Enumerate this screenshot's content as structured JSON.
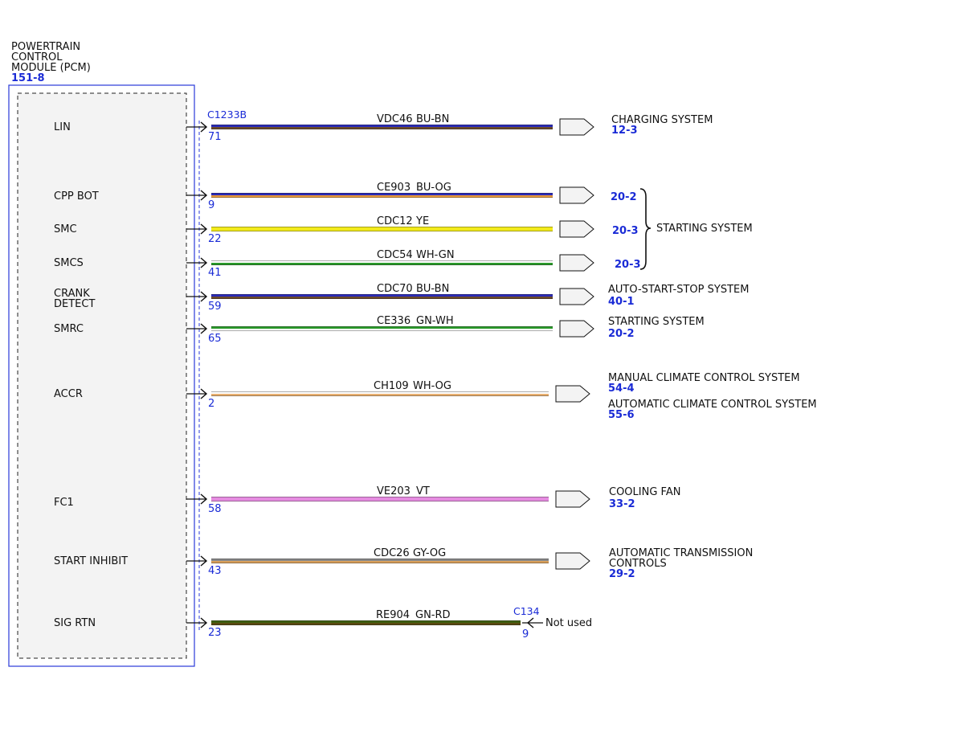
{
  "module": {
    "name_lines": [
      "POWERTRAIN",
      "CONTROL",
      "MODULE (PCM)"
    ],
    "ref": "151-8"
  },
  "connectors": {
    "main": "C1233B",
    "sig_rtn": "C134"
  },
  "wires": [
    {
      "signal": [
        "LIN"
      ],
      "pin": "71",
      "circuit": "VDC46",
      "color_code": "BU-BN",
      "colors": [
        "#2a2ab8",
        "#6b4a2a"
      ],
      "dest": "CHARGING SYSTEM",
      "ref": "12-3"
    },
    {
      "signal": [
        "CPP BOT"
      ],
      "pin": "9",
      "circuit": "CE903",
      "color_code": "BU-OG",
      "colors": [
        "#2a2ab8",
        "#e89a3c"
      ],
      "ref": "20-2"
    },
    {
      "signal": [
        "SMC"
      ],
      "pin": "22",
      "circuit": "CDC12",
      "color_code": "YE",
      "colors": [
        "#f2ea1a",
        "#f2ea1a"
      ],
      "ref": "20-3"
    },
    {
      "signal": [
        "SMCS"
      ],
      "pin": "41",
      "circuit": "CDC54",
      "color_code": "WH-GN",
      "colors": [
        "#ffffff",
        "#2a9a2a"
      ],
      "ref": "20-3"
    },
    {
      "signal": [
        "CRANK",
        "DETECT"
      ],
      "pin": "59",
      "circuit": "CDC70",
      "color_code": "BU-BN",
      "colors": [
        "#2a2ab8",
        "#6b4a2a"
      ],
      "dest": "AUTO-START-STOP SYSTEM",
      "ref": "40-1"
    },
    {
      "signal": [
        "SMRC"
      ],
      "pin": "65",
      "circuit": "CE336",
      "color_code": "GN-WH",
      "colors": [
        "#2a9a2a",
        "#ffffff"
      ],
      "dest": "STARTING SYSTEM",
      "ref": "20-2"
    },
    {
      "signal": [
        "ACCR"
      ],
      "pin": "2",
      "circuit": "CH109",
      "color_code": "WH-OG",
      "colors": [
        "#ffffff",
        "#e8b070"
      ],
      "dest": "MANUAL CLIMATE CONTROL SYSTEM",
      "ref": "54-4",
      "dest2": "AUTOMATIC CLIMATE CONTROL SYSTEM",
      "ref2": "55-6"
    },
    {
      "signal": [
        "FC1"
      ],
      "pin": "58",
      "circuit": "VE203",
      "color_code": "VT",
      "colors": [
        "#e58be0",
        "#e58be0"
      ],
      "dest": "COOLING FAN",
      "ref": "33-2"
    },
    {
      "signal": [
        "START INHIBIT"
      ],
      "pin": "43",
      "circuit": "CDC26",
      "color_code": "GY-OG",
      "colors": [
        "#8a8a8a",
        "#d9a05a"
      ],
      "dest_lines": [
        "AUTOMATIC TRANSMISSION",
        "CONTROLS"
      ],
      "ref": "29-2"
    },
    {
      "signal": [
        "SIG RTN"
      ],
      "pin": "23",
      "circuit": "RE904",
      "color_code": "GN-RD",
      "colors": [
        "#3f5f10",
        "#5a4a10"
      ],
      "end_pin": "9",
      "end_label": "Not used"
    }
  ],
  "group": {
    "label": "STARTING SYSTEM"
  }
}
